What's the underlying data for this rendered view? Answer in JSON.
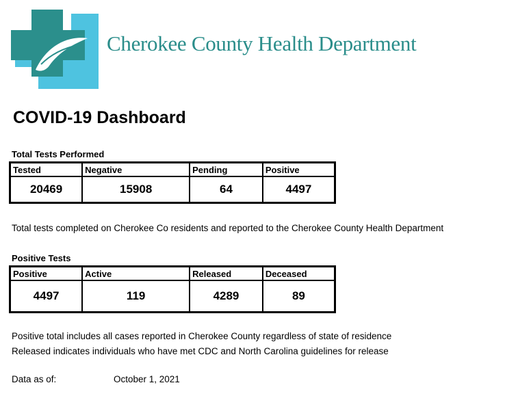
{
  "header": {
    "org_name": "Cherokee County Health Department",
    "logo_icon": "medical-cross-leaf-icon",
    "brand_color": "#2a8d8a",
    "logo_colors": {
      "light": "#4ec3e0",
      "dark": "#2b8f8c"
    }
  },
  "page_title": "COVID-19 Dashboard",
  "total_tests": {
    "label": "Total Tests Performed",
    "columns": [
      "Tested",
      "Negative",
      "Pending",
      "Positive"
    ],
    "values": [
      "20469",
      "15908",
      "64",
      "4497"
    ],
    "note": "Total tests completed on Cherokee Co residents and reported to the Cherokee County Health Department"
  },
  "positive_tests": {
    "label": "Positive Tests",
    "columns": [
      "Positive",
      "Active",
      "Released",
      "Deceased"
    ],
    "values": [
      "4497",
      "119",
      "4289",
      "89"
    ],
    "notes": [
      "Positive total includes all cases reported in Cherokee County regardless of state of residence",
      "Released indicates individuals who have met CDC and North Carolina guidelines for release"
    ]
  },
  "data_as_of": {
    "label": "Data as of:",
    "value": "October 1, 2021"
  }
}
